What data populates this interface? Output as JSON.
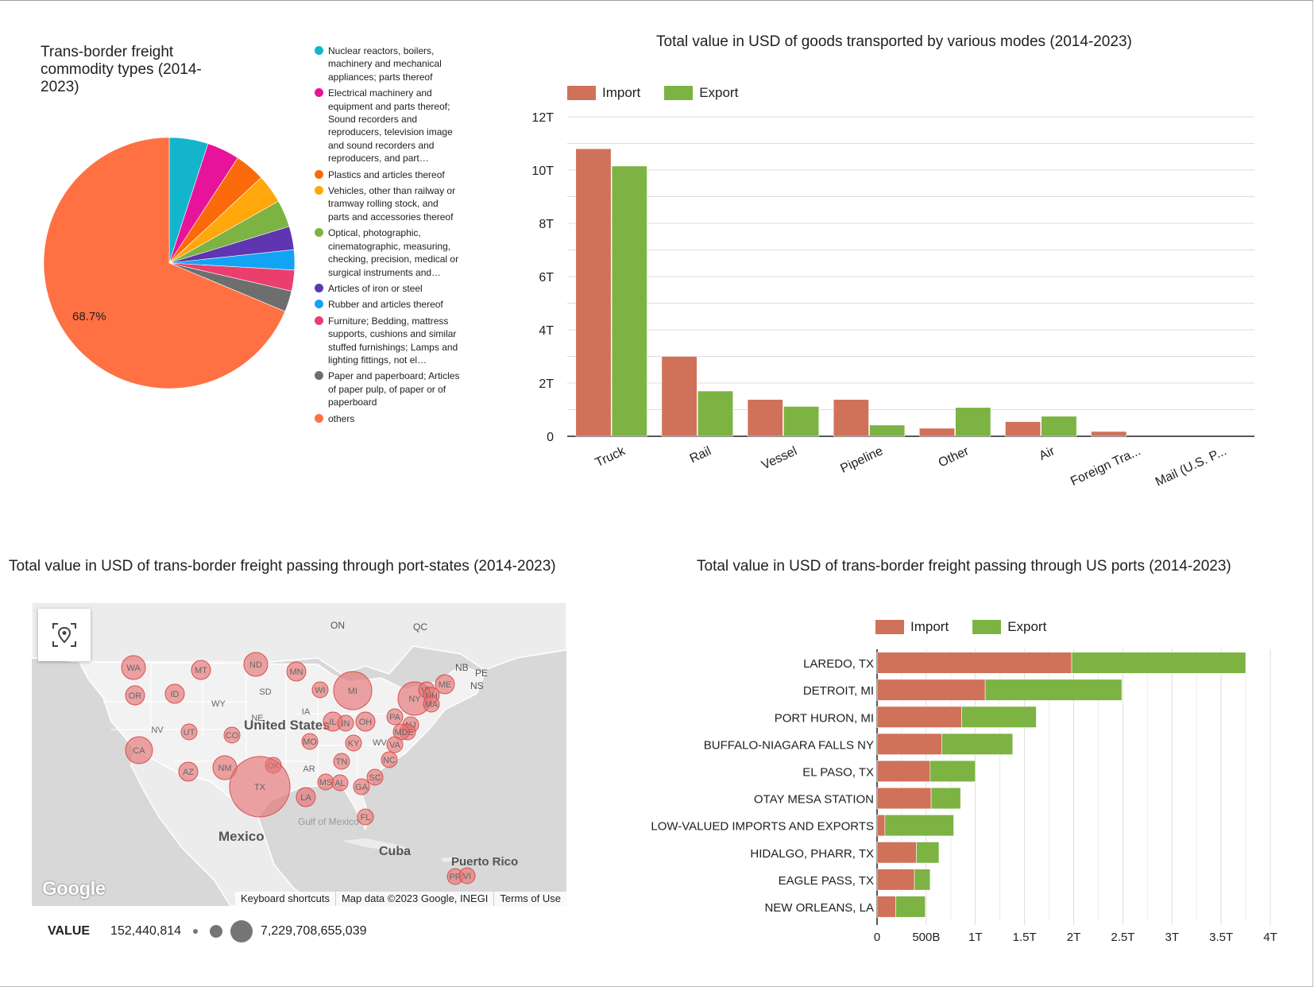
{
  "pie": {
    "title": "Trans-border freight commodity types (2014-2023)",
    "chart_data": {
      "type": "pie",
      "title": "Trans-border freight commodity types (2014-2023)",
      "slices": [
        {
          "label": "Nuclear reactors, boilers, machinery and mechanical appliances; parts thereof",
          "value": 5.0,
          "color": "#12b5cb"
        },
        {
          "label": "Electrical machinery and equipment and parts thereof; Sound recorders and reproducers, television image and sound recorders and reproducers, and part…",
          "value": 4.2,
          "color": "#e8139b"
        },
        {
          "label": "Plastics and articles thereof",
          "value": 3.9,
          "color": "#fa6a0a"
        },
        {
          "label": "Vehicles, other than railway or tramway rolling stock, and parts and accessories thereof",
          "value": 3.7,
          "color": "#ffa70b"
        },
        {
          "label": "Optical, photographic, cinematographic, measuring, checking, precision, medical or surgical instruments and…",
          "value": 3.5,
          "color": "#7cb342"
        },
        {
          "label": "Articles of iron or steel",
          "value": 3.0,
          "color": "#5f35b1"
        },
        {
          "label": "Rubber and articles thereof",
          "value": 2.6,
          "color": "#12a4f4"
        },
        {
          "label": "Furniture; Bedding, mattress supports, cushions and similar stuffed furnishings; Lamps and lighting fittings, not el…",
          "value": 2.7,
          "color": "#ea3f6c"
        },
        {
          "label": "Paper and paperboard; Articles of paper pulp, of paper or of paperboard",
          "value": 2.7,
          "color": "#6e6e6e"
        },
        {
          "label": "others",
          "value": 68.7,
          "color": "#ff7043"
        }
      ],
      "data_labels": [
        "68.7%"
      ]
    }
  },
  "modes": {
    "title": "Total value in USD of goods transported by various modes (2014-2023)",
    "chart_data": {
      "type": "bar",
      "title": "Total value in USD of goods transported by various modes (2014-2023)",
      "categories": [
        "Truck",
        "Rail",
        "Vessel",
        "Pipeline",
        "Other",
        "Air",
        "Foreign Tra...",
        "Mail (U.S. P..."
      ],
      "series": [
        {
          "name": "Import",
          "color": "#d07159",
          "values": [
            10.8,
            3.0,
            1.38,
            1.38,
            0.3,
            0.55,
            0.18,
            0.0
          ]
        },
        {
          "name": "Export",
          "color": "#7cb342",
          "values": [
            10.15,
            1.7,
            1.12,
            0.42,
            1.08,
            0.75,
            0.0,
            0.0
          ]
        }
      ],
      "ylim": [
        0,
        12
      ],
      "yticks": [
        0,
        2,
        4,
        6,
        8,
        10,
        12
      ],
      "ytick_labels": [
        "0",
        "2T",
        "4T",
        "6T",
        "8T",
        "10T",
        "12T"
      ],
      "legend": "top-left",
      "grid": true
    }
  },
  "map": {
    "title": "Total value in USD of trans-border freight passing through port-states (2014-2023)",
    "place_labels": {
      "us": "United States",
      "mexico": "Mexico",
      "cuba": "Cuba",
      "pr": "Puerto Rico",
      "gulf": "Gulf of Mexico",
      "on": "ON",
      "qc": "QC",
      "nb": "NB",
      "pe": "PE",
      "ns": "NS"
    },
    "bubbles": [
      {
        "label": "WA",
        "v": 3
      },
      {
        "label": "MT",
        "v": 2
      },
      {
        "label": "ND",
        "v": 3
      },
      {
        "label": "MN",
        "v": 2
      },
      {
        "label": "OR",
        "v": 2
      },
      {
        "label": "ID",
        "v": 2
      },
      {
        "label": "WY",
        "v": 0
      },
      {
        "label": "SD",
        "v": 0
      },
      {
        "label": "WI",
        "v": 1
      },
      {
        "label": "MI",
        "v": 9
      },
      {
        "label": "NY",
        "v": 6
      },
      {
        "label": "VT",
        "v": 1
      },
      {
        "label": "NH",
        "v": 1
      },
      {
        "label": "ME",
        "v": 2
      },
      {
        "label": "MA",
        "v": 1
      },
      {
        "label": "NE",
        "v": 0
      },
      {
        "label": "IA",
        "v": 0
      },
      {
        "label": "IL",
        "v": 2
      },
      {
        "label": "IN",
        "v": 1
      },
      {
        "label": "OH",
        "v": 2
      },
      {
        "label": "PA",
        "v": 1
      },
      {
        "label": "NJ",
        "v": 1
      },
      {
        "label": "DE",
        "v": 1
      },
      {
        "label": "MD",
        "v": 1
      },
      {
        "label": "NV",
        "v": 0
      },
      {
        "label": "UT",
        "v": 1
      },
      {
        "label": "CO",
        "v": 1
      },
      {
        "label": "CA",
        "v": 4
      },
      {
        "label": "MO",
        "v": 1
      },
      {
        "label": "KY",
        "v": 1
      },
      {
        "label": "WV",
        "v": 0
      },
      {
        "label": "VA",
        "v": 1
      },
      {
        "label": "AZ",
        "v": 2
      },
      {
        "label": "NM",
        "v": 3
      },
      {
        "label": "OK",
        "v": 1
      },
      {
        "label": "AR",
        "v": 0
      },
      {
        "label": "TN",
        "v": 1
      },
      {
        "label": "NC",
        "v": 1
      },
      {
        "label": "TX",
        "v": 20
      },
      {
        "label": "MS",
        "v": 1
      },
      {
        "label": "AL",
        "v": 1
      },
      {
        "label": "GA",
        "v": 1
      },
      {
        "label": "SC",
        "v": 1
      },
      {
        "label": "LA",
        "v": 2
      },
      {
        "label": "FL",
        "v": 1
      },
      {
        "label": "PR",
        "v": 1
      },
      {
        "label": "VI",
        "v": 1
      }
    ],
    "attribution": {
      "keyboard": "Keyboard shortcuts",
      "mapdata": "Map data ©2023 Google, INEGI",
      "terms": "Terms of Use",
      "logo": "Google"
    },
    "legend": {
      "label": "VALUE",
      "min": "152,440,814",
      "max": "7,229,708,655,039"
    }
  },
  "ports": {
    "title": "Total value in USD of trans-border freight passing through US ports (2014-2023)",
    "chart_data": {
      "type": "bar",
      "orientation": "horizontal",
      "stacked": true,
      "title": "Total value in USD of trans-border freight passing through US ports (2014-2023)",
      "categories": [
        "LAREDO, TX",
        "DETROIT, MI",
        "PORT HURON, MI",
        "BUFFALO-NIAGARA FALLS NY",
        "EL PASO, TX",
        "OTAY MESA STATION",
        "LOW-VALUED IMPORTS AND EXPORTS",
        "HIDALGO, PHARR, TX",
        "EAGLE PASS, TX",
        "NEW ORLEANS, LA"
      ],
      "series": [
        {
          "name": "Import",
          "color": "#d07159",
          "values": [
            1980,
            1100,
            860,
            660,
            540,
            550,
            80,
            400,
            380,
            190
          ]
        },
        {
          "name": "Export",
          "color": "#7cb342",
          "values": [
            1770,
            1390,
            760,
            720,
            460,
            300,
            700,
            230,
            160,
            300
          ]
        }
      ],
      "xlim": [
        0,
        4000
      ],
      "xticks": [
        0,
        500,
        1000,
        1500,
        2000,
        2500,
        3000,
        3500,
        4000
      ],
      "xtick_labels": [
        "0",
        "500B",
        "1T",
        "1.5T",
        "2T",
        "2.5T",
        "3T",
        "3.5T",
        "4T"
      ],
      "legend": "top-left",
      "grid": true
    }
  }
}
